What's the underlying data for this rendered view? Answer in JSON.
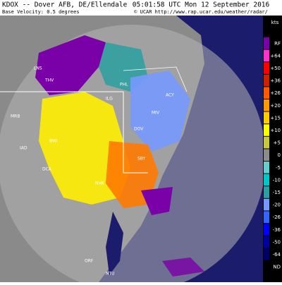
{
  "header": {
    "station": "KDOX -- Dover AFB, DE/Ellendale",
    "product": "Base Velocity: 0.5 degrees",
    "timestamp": "05:01:58 UTC Mon 12 September 2016",
    "credit": "© UCAR   http://www.rap.ucar.edu/weather/radar/"
  },
  "legend": {
    "unit": "kts",
    "entries": [
      {
        "label": "RF",
        "color": "#7a00a8"
      },
      {
        "label": "+64",
        "color": "#ff33cc"
      },
      {
        "label": "+50",
        "color": "#ff0000"
      },
      {
        "label": "+36",
        "color": "#cc2200"
      },
      {
        "label": "+26",
        "color": "#ff5a00"
      },
      {
        "label": "+20",
        "color": "#ff9900"
      },
      {
        "label": "+15",
        "color": "#ffcc00"
      },
      {
        "label": "+10",
        "color": "#ffff00"
      },
      {
        "label": "+5",
        "color": "#c8c840"
      },
      {
        "label": "0",
        "color": "#8c8c8c"
      },
      {
        "label": "-5",
        "color": "#66cccc"
      },
      {
        "label": "-10",
        "color": "#00c8c8"
      },
      {
        "label": "-15",
        "color": "#2aa0a0"
      },
      {
        "label": "-20",
        "color": "#7799ff"
      },
      {
        "label": "-26",
        "color": "#3366ff"
      },
      {
        "label": "-36",
        "color": "#0000ff"
      },
      {
        "label": "-50",
        "color": "#0000a0"
      },
      {
        "label": "-64",
        "color": "#000066"
      },
      {
        "label": "ND",
        "color": "#000000"
      }
    ]
  },
  "map": {
    "labels": [
      "LNS",
      "THV",
      "MRB",
      "IAD",
      "DCA",
      "BWI",
      "DOV",
      "ILG",
      "PHL",
      "ACY",
      "MIV",
      "SBY",
      "NHK",
      "ORF",
      "NTU"
    ]
  }
}
